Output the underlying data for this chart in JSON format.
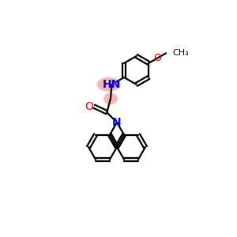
{
  "bg_color": "#ffffff",
  "atom_colors": {
    "N": "#0000ee",
    "O": "#ee0000",
    "C": "#000000"
  },
  "highlight_color": "#f08080",
  "highlight_alpha": 0.55,
  "lw": 1.6,
  "doff": 2.2,
  "S": 18
}
